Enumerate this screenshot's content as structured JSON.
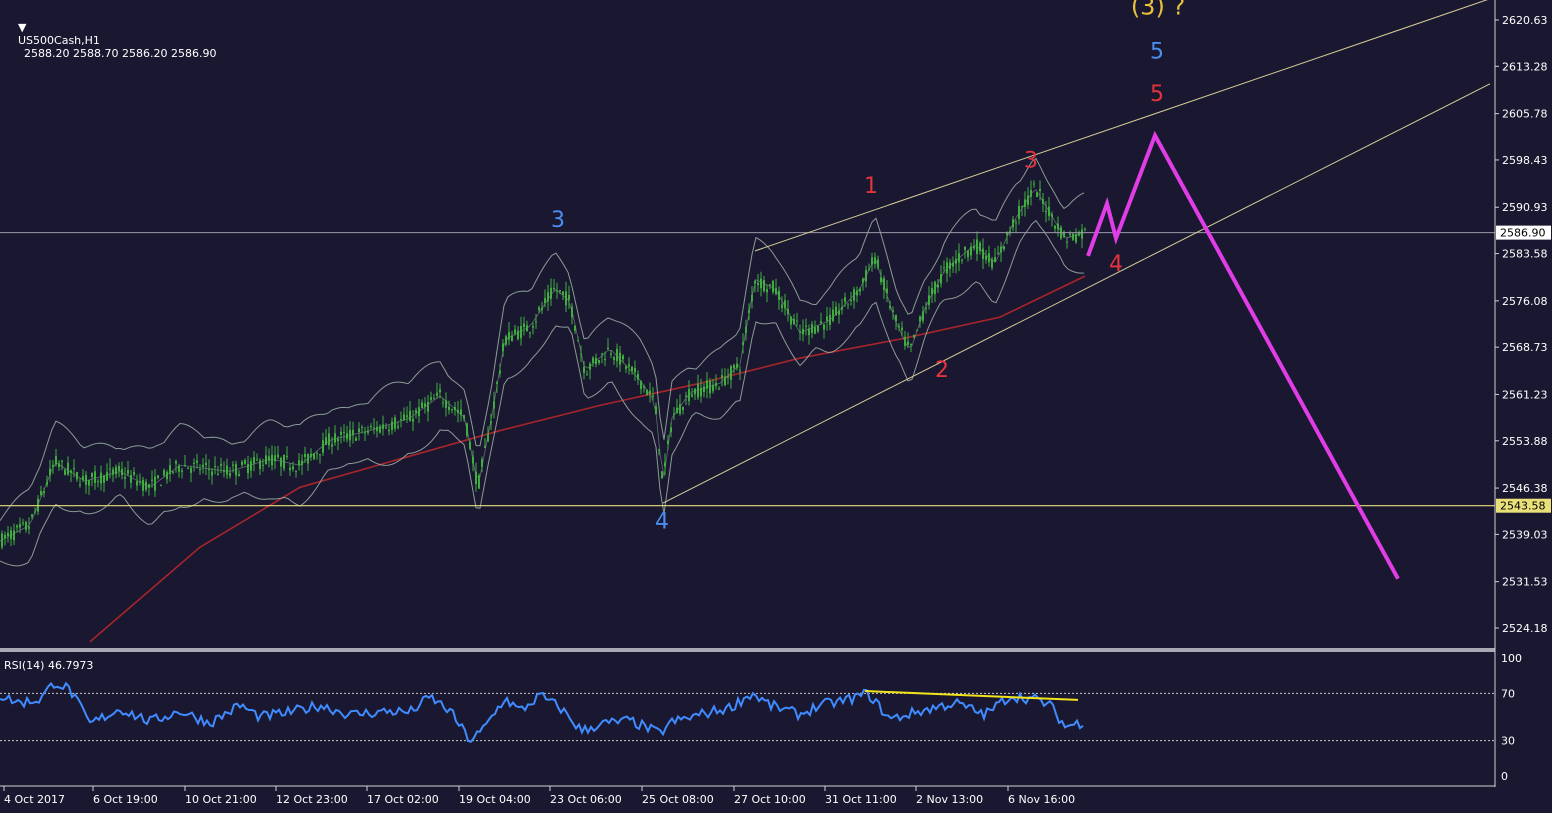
{
  "header": {
    "symbol": "US500Cash,H1",
    "ohlc": "2588.20 2588.70 2586.20 2586.90"
  },
  "rsi": {
    "label": "RSI(14) 46.7973",
    "levels": [
      100,
      70,
      30,
      0
    ]
  },
  "colors": {
    "background": "#1a1830",
    "candles": "#3fae3f",
    "bands": "#9fb3a8",
    "ma": "#a8242b",
    "wedge_lines": "#d8cf9a",
    "support_line": "#e9e07a",
    "projection": "#e13de6",
    "rsi_line": "#3f8bff",
    "rsi_trend": "#f2e31b",
    "wave_red": "#e2343d",
    "wave_blue": "#4a8ef0",
    "wave_yellow": "#e8c23a"
  },
  "price_axis": {
    "ticks": [
      "2620.63",
      "2613.28",
      "2605.78",
      "2598.43",
      "2590.93",
      "2583.58",
      "2576.08",
      "2568.73",
      "2561.23",
      "2553.88",
      "2546.38",
      "2539.03",
      "2531.53",
      "2524.18"
    ],
    "current_price": "2586.90",
    "support_price": "2543.58"
  },
  "time_axis": {
    "ticks": [
      "4 Oct 2017",
      "6 Oct 19:00",
      "10 Oct 21:00",
      "12 Oct 23:00",
      "17 Oct 02:00",
      "19 Oct 04:00",
      "23 Oct 06:00",
      "25 Oct 08:00",
      "27 Oct 10:00",
      "31 Oct 11:00",
      "2 Nov 13:00",
      "6 Nov 16:00"
    ]
  },
  "wave_labels": [
    {
      "text": "(3) ?",
      "color": "wave_yellow",
      "price": 2621.5,
      "bar": 1158
    },
    {
      "text": "5",
      "color": "wave_blue",
      "price": 2614.5,
      "bar": 1157
    },
    {
      "text": "5",
      "color": "wave_red",
      "price": 2607.8,
      "bar": 1157
    },
    {
      "text": "3",
      "color": "wave_red",
      "price": 2597.2,
      "bar": 1031
    },
    {
      "text": "1",
      "color": "wave_red",
      "price": 2593.2,
      "bar": 871
    },
    {
      "text": "3",
      "color": "wave_blue",
      "price": 2587.8,
      "bar": 558
    },
    {
      "text": "4",
      "color": "wave_red",
      "price": 2580.8,
      "bar": 1116
    },
    {
      "text": "2",
      "color": "wave_red",
      "price": 2564.0,
      "bar": 942
    },
    {
      "text": "4",
      "color": "wave_blue",
      "price": 2540.0,
      "bar": 662
    }
  ],
  "chart_data": {
    "type": "candlestick",
    "instrument": "US500Cash",
    "timeframe": "H1",
    "last": {
      "open": 2588.2,
      "high": 2588.7,
      "low": 2586.2,
      "close": 2586.9
    },
    "ylim": [
      2521.0,
      2623.0
    ],
    "indicators": [
      "Bollinger Bands",
      "Moving Average",
      "RSI(14)"
    ],
    "price_path": [
      [
        0,
        2538.0
      ],
      [
        30,
        2540.5
      ],
      [
        55,
        2550.5
      ],
      [
        85,
        2547.5
      ],
      [
        120,
        2549.0
      ],
      [
        150,
        2546.5
      ],
      [
        180,
        2550.0
      ],
      [
        230,
        2549.0
      ],
      [
        270,
        2551.0
      ],
      [
        300,
        2550.0
      ],
      [
        330,
        2554.0
      ],
      [
        370,
        2555.5
      ],
      [
        410,
        2557.5
      ],
      [
        440,
        2561.0
      ],
      [
        465,
        2557.5
      ],
      [
        478,
        2546.5
      ],
      [
        492,
        2558.0
      ],
      [
        505,
        2570.0
      ],
      [
        530,
        2572.0
      ],
      [
        555,
        2578.0
      ],
      [
        570,
        2576.0
      ],
      [
        585,
        2565.0
      ],
      [
        610,
        2568.5
      ],
      [
        640,
        2563.5
      ],
      [
        655,
        2560.0
      ],
      [
        663,
        2547.0
      ],
      [
        672,
        2557.5
      ],
      [
        690,
        2561.5
      ],
      [
        720,
        2563.0
      ],
      [
        740,
        2566.0
      ],
      [
        755,
        2579.5
      ],
      [
        775,
        2578.0
      ],
      [
        800,
        2571.0
      ],
      [
        830,
        2573.0
      ],
      [
        860,
        2578.0
      ],
      [
        875,
        2583.0
      ],
      [
        895,
        2573.0
      ],
      [
        910,
        2568.0
      ],
      [
        925,
        2575.0
      ],
      [
        945,
        2581.0
      ],
      [
        975,
        2585.0
      ],
      [
        995,
        2582.0
      ],
      [
        1015,
        2589.0
      ],
      [
        1035,
        2594.0
      ],
      [
        1050,
        2590.0
      ],
      [
        1065,
        2586.0
      ],
      [
        1085,
        2586.9
      ]
    ],
    "moving_average": [
      [
        90,
        2522.0
      ],
      [
        200,
        2537.0
      ],
      [
        300,
        2546.5
      ],
      [
        400,
        2551.0
      ],
      [
        500,
        2555.5
      ],
      [
        600,
        2559.5
      ],
      [
        700,
        2563.0
      ],
      [
        800,
        2567.0
      ],
      [
        900,
        2570.0
      ],
      [
        1000,
        2573.5
      ],
      [
        1085,
        2580.0
      ]
    ],
    "horizontal_lines": [
      {
        "name": "current-price",
        "price": 2586.9
      },
      {
        "name": "support",
        "price": 2543.58
      }
    ],
    "wedge_upper": [
      [
        755,
        2584.0
      ],
      [
        1490,
        2624.0
      ]
    ],
    "wedge_lower": [
      [
        663,
        2544.0
      ],
      [
        1490,
        2610.5
      ]
    ],
    "projection": [
      [
        1088,
        2583.2
      ],
      [
        1107,
        2591.5
      ],
      [
        1116,
        2586.0
      ],
      [
        1155,
        2602.3
      ],
      [
        1398,
        2532.0
      ]
    ],
    "rsi": {
      "levels": {
        "upper": 70,
        "lower": 30
      },
      "path": [
        [
          0,
          68
        ],
        [
          20,
          62
        ],
        [
          40,
          65
        ],
        [
          55,
          80
        ],
        [
          70,
          73
        ],
        [
          90,
          44
        ],
        [
          120,
          57
        ],
        [
          150,
          46
        ],
        [
          180,
          55
        ],
        [
          210,
          45
        ],
        [
          240,
          60
        ],
        [
          260,
          50
        ],
        [
          290,
          54
        ],
        [
          320,
          60
        ],
        [
          350,
          52
        ],
        [
          390,
          55
        ],
        [
          410,
          54
        ],
        [
          430,
          67
        ],
        [
          450,
          55
        ],
        [
          470,
          30
        ],
        [
          482,
          38
        ],
        [
          505,
          66
        ],
        [
          520,
          55
        ],
        [
          540,
          68
        ],
        [
          560,
          58
        ],
        [
          582,
          38
        ],
        [
          600,
          44
        ],
        [
          630,
          47
        ],
        [
          660,
          36
        ],
        [
          670,
          45
        ],
        [
          700,
          52
        ],
        [
          730,
          58
        ],
        [
          752,
          70
        ],
        [
          770,
          60
        ],
        [
          800,
          52
        ],
        [
          820,
          60
        ],
        [
          845,
          64
        ],
        [
          868,
          70
        ],
        [
          890,
          48
        ],
        [
          920,
          55
        ],
        [
          955,
          62
        ],
        [
          985,
          52
        ],
        [
          1010,
          68
        ],
        [
          1035,
          65
        ],
        [
          1050,
          60
        ],
        [
          1065,
          42
        ],
        [
          1085,
          46
        ]
      ],
      "divergence": [
        [
          865,
          72.0
        ],
        [
          1078,
          64.5
        ]
      ]
    }
  }
}
